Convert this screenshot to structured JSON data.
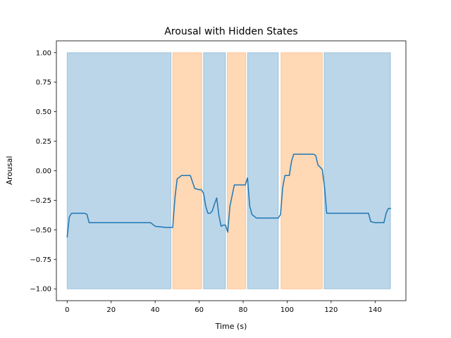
{
  "chart_data": {
    "type": "line",
    "title": "Arousal with Hidden States",
    "xlabel": "Time (s)",
    "ylabel": "Arousal",
    "xlim": [
      -4.9,
      154.0
    ],
    "ylim": [
      -1.1,
      1.1
    ],
    "grid": false,
    "x_ticks": [
      0,
      20,
      40,
      60,
      80,
      100,
      120,
      140
    ],
    "y_ticks": [
      -1.0,
      -0.75,
      -0.5,
      -0.25,
      0.0,
      0.25,
      0.5,
      0.75,
      1.0
    ],
    "x_tick_labels": [
      "0",
      "20",
      "40",
      "60",
      "80",
      "100",
      "120",
      "140"
    ],
    "y_tick_labels": [
      "−1.00",
      "−0.75",
      "−0.50",
      "−0.25",
      "0.00",
      "0.25",
      "0.50",
      "0.75",
      "1.00"
    ],
    "state_colors": {
      "0": "#1f77b4",
      "1": "#ff7f0e"
    },
    "state_alpha": 0.3,
    "state_spans": [
      {
        "state": 0,
        "start": 0.0,
        "end": 47.2,
        "ymin": -1.0,
        "ymax": 1.0
      },
      {
        "state": 1,
        "start": 48.0,
        "end": 61.2,
        "ymin": -1.0,
        "ymax": 1.0
      },
      {
        "state": 0,
        "start": 62.0,
        "end": 72.0,
        "ymin": -1.0,
        "ymax": 1.0
      },
      {
        "state": 1,
        "start": 72.8,
        "end": 81.2,
        "ymin": -1.0,
        "ymax": 1.0
      },
      {
        "state": 0,
        "start": 82.0,
        "end": 96.0,
        "ymin": -1.0,
        "ymax": 1.0
      },
      {
        "state": 1,
        "start": 97.2,
        "end": 116.0,
        "ymin": -1.0,
        "ymax": 1.0
      },
      {
        "state": 0,
        "start": 116.8,
        "end": 147.0,
        "ymin": -1.0,
        "ymax": 1.0
      }
    ],
    "series": [
      {
        "color": "#1f77b4",
        "x": [
          0,
          1,
          2,
          3,
          4,
          5,
          6,
          7,
          8,
          9,
          10,
          12,
          15,
          20,
          25,
          30,
          35,
          38,
          40,
          45,
          47,
          48,
          49,
          50,
          52,
          54,
          55,
          56,
          58,
          60,
          61,
          62,
          63,
          64,
          65,
          66,
          67,
          68,
          69,
          70,
          71,
          72,
          73,
          74,
          76,
          78,
          80,
          81,
          82,
          83,
          84,
          86,
          90,
          94,
          96,
          97,
          98,
          99,
          100,
          101,
          102,
          103,
          104,
          106,
          110,
          112,
          113,
          114,
          116,
          117,
          118,
          120,
          125,
          130,
          135,
          136,
          137,
          138,
          140,
          142,
          143,
          144,
          145,
          146,
          147
        ],
        "y": [
          -0.56,
          -0.39,
          -0.36,
          -0.36,
          -0.36,
          -0.36,
          -0.36,
          -0.36,
          -0.36,
          -0.37,
          -0.44,
          -0.44,
          -0.44,
          -0.44,
          -0.44,
          -0.44,
          -0.44,
          -0.44,
          -0.47,
          -0.48,
          -0.48,
          -0.48,
          -0.23,
          -0.07,
          -0.04,
          -0.04,
          -0.04,
          -0.04,
          -0.15,
          -0.16,
          -0.16,
          -0.19,
          -0.3,
          -0.36,
          -0.36,
          -0.34,
          -0.28,
          -0.23,
          -0.38,
          -0.47,
          -0.46,
          -0.46,
          -0.52,
          -0.3,
          -0.12,
          -0.12,
          -0.12,
          -0.12,
          -0.06,
          -0.3,
          -0.37,
          -0.4,
          -0.4,
          -0.4,
          -0.4,
          -0.37,
          -0.14,
          -0.04,
          -0.04,
          -0.04,
          0.08,
          0.14,
          0.14,
          0.14,
          0.14,
          0.14,
          0.13,
          0.05,
          0.01,
          -0.14,
          -0.36,
          -0.36,
          -0.36,
          -0.36,
          -0.36,
          -0.36,
          -0.36,
          -0.43,
          -0.44,
          -0.44,
          -0.44,
          -0.44,
          -0.36,
          -0.32,
          -0.32
        ]
      }
    ]
  }
}
